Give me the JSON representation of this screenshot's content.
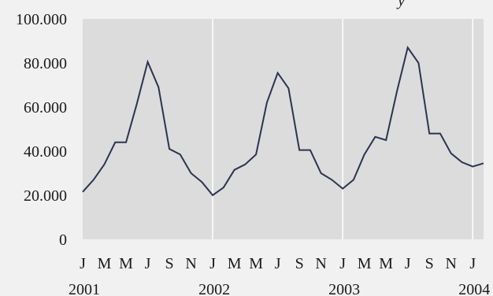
{
  "chart_data": {
    "type": "line",
    "title_fragment": "y",
    "xlabel": "",
    "ylabel": "",
    "ylim": [
      0,
      100000
    ],
    "y_ticks": [
      0,
      20000,
      40000,
      60000,
      80000,
      100000
    ],
    "y_tick_labels": [
      "0",
      "20.000",
      "40.000",
      "60.000",
      "80.000",
      "100.000"
    ],
    "grid": "vertical lines at year boundaries",
    "month_tick_labels": [
      "J",
      "M",
      "M",
      "J",
      "S",
      "N",
      "J",
      "M",
      "M",
      "J",
      "S",
      "N",
      "J",
      "M",
      "M",
      "J",
      "S",
      "N",
      "J"
    ],
    "year_labels": [
      "2001",
      "2002",
      "2003",
      "2004"
    ],
    "x_start": "2001-01",
    "x_end": "2004-03",
    "series": [
      {
        "values": [
          21500,
          27000,
          34000,
          44000,
          44000,
          61500,
          80500,
          69000,
          41000,
          38500,
          30000,
          26000,
          20000,
          23500,
          31500,
          34000,
          38500,
          62000,
          75500,
          68500,
          40500,
          40500,
          30000,
          27000,
          23000,
          27000,
          38500,
          46500,
          45000,
          67000,
          87000,
          80000,
          48000,
          48000,
          39000,
          35000,
          33000,
          34500
        ]
      }
    ],
    "colors": {
      "line": "#2b3450",
      "plot_background": "#dcdcdc",
      "page_background": "#f1f1f1",
      "gridline": "#ffffff"
    }
  }
}
